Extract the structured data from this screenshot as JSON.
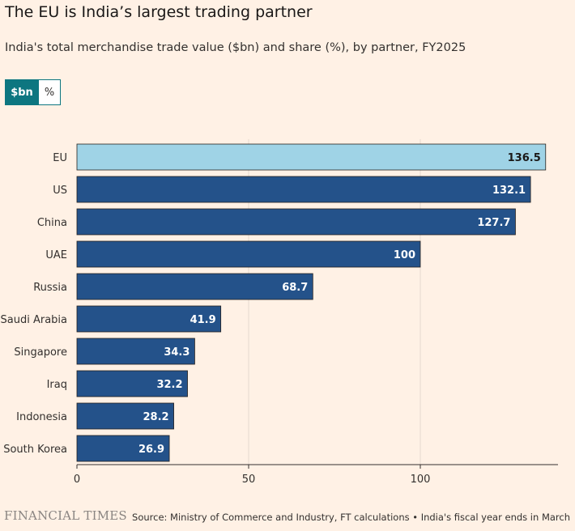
{
  "title": "The EU is India’s largest trading partner",
  "subtitle": "India's total merchandise trade value ($bn) and share (%), by partner, FY2025",
  "toggle": {
    "active_label": "$bn",
    "inactive_label": "%"
  },
  "footer": {
    "logo": "FINANCIAL TIMES",
    "source": "Source: Ministry of Commerce and Industry, FT calculations • India's fiscal year ends in March"
  },
  "colors": {
    "highlight": "#9fd3e6",
    "bar": "#24528a",
    "background": "#fff1e5",
    "toggle_active": "#0d7680"
  },
  "chart_data": {
    "type": "bar",
    "orientation": "horizontal",
    "categories": [
      "EU",
      "US",
      "China",
      "UAE",
      "Russia",
      "Saudi Arabia",
      "Singapore",
      "Iraq",
      "Indonesia",
      "South Korea"
    ],
    "values": [
      136.5,
      132.1,
      127.7,
      100,
      68.7,
      41.9,
      34.3,
      32.2,
      28.2,
      26.9
    ],
    "value_labels": [
      "136.5",
      "132.1",
      "127.7",
      "100",
      "68.7",
      "41.9",
      "34.3",
      "32.2",
      "28.2",
      "26.9"
    ],
    "highlight_category": "EU",
    "x_ticks": [
      0,
      50,
      100
    ],
    "x_tick_labels": [
      "0",
      "50",
      "100"
    ],
    "xlim": [
      0,
      140
    ],
    "grid": true
  }
}
